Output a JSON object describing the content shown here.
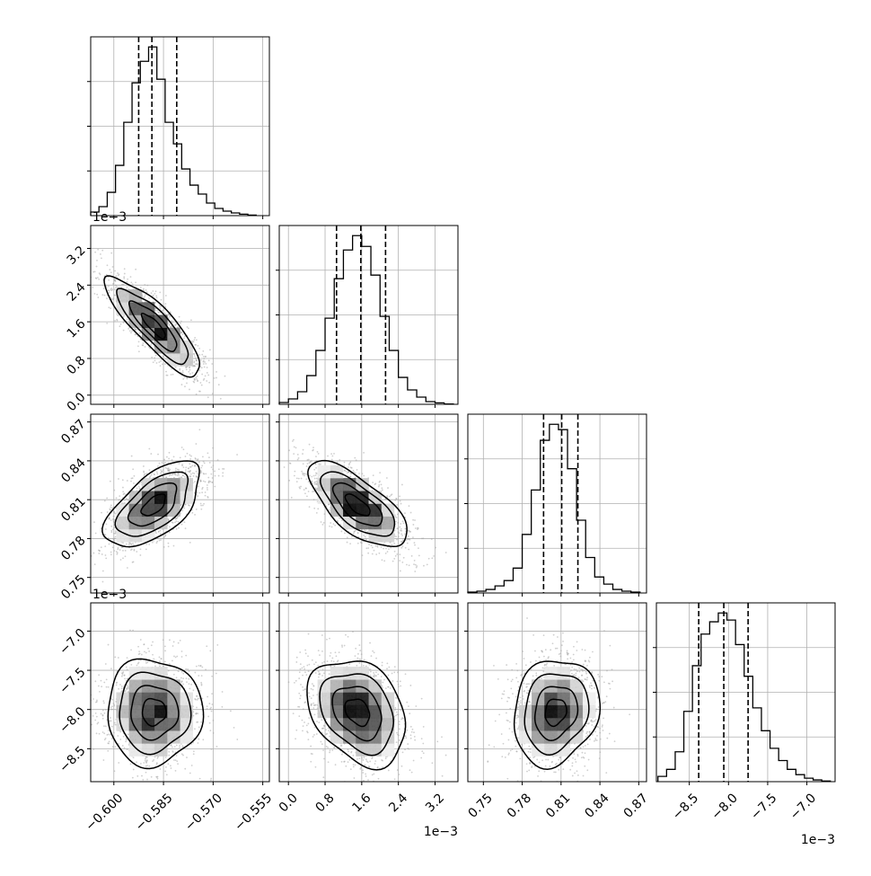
{
  "chart_data": {
    "type": "corner",
    "grid": true,
    "parameters": [
      {
        "index": 0,
        "range": [
          -0.607,
          -0.553
        ],
        "ticks": [
          -0.6,
          -0.585,
          -0.57,
          -0.555
        ],
        "tick_labels": [
          "−0.600",
          "−0.585",
          "−0.570",
          "−0.555"
        ],
        "offset_label": "",
        "quantiles": [
          -0.5925,
          -0.5885,
          -0.581
        ],
        "histogram": {
          "bin_edges": [
            -0.607,
            -0.6045,
            -0.602,
            -0.5995,
            -0.597,
            -0.5945,
            -0.592,
            -0.5895,
            -0.587,
            -0.5845,
            -0.582,
            -0.5795,
            -0.577,
            -0.5745,
            -0.572,
            -0.5695,
            -0.567,
            -0.5645,
            -0.562,
            -0.5595,
            -0.557
          ],
          "counts": [
            0.02,
            0.05,
            0.13,
            0.28,
            0.52,
            0.74,
            0.86,
            0.94,
            0.76,
            0.52,
            0.4,
            0.26,
            0.17,
            0.12,
            0.07,
            0.04,
            0.025,
            0.015,
            0.008,
            0.003
          ]
        }
      },
      {
        "index": 1,
        "range": [
          -0.0002,
          0.0037
        ],
        "ticks": [
          0.0,
          0.0008,
          0.0016,
          0.0024,
          0.0032
        ],
        "tick_labels": [
          "0.0",
          "0.8",
          "1.6",
          "2.4",
          "3.2"
        ],
        "offset_label": "1e−3",
        "quantiles": [
          0.00105,
          0.00158,
          0.00212
        ],
        "histogram": {
          "bin_edges": [
            -0.0002,
            0.0,
            0.0002,
            0.0004,
            0.0006,
            0.0008,
            0.001,
            0.0012,
            0.0014,
            0.0016,
            0.0018,
            0.002,
            0.0022,
            0.0024,
            0.0026,
            0.0028,
            0.003,
            0.0032,
            0.0034,
            0.0036
          ],
          "counts": [
            0.01,
            0.03,
            0.07,
            0.16,
            0.3,
            0.48,
            0.7,
            0.86,
            0.94,
            0.88,
            0.72,
            0.49,
            0.3,
            0.15,
            0.08,
            0.04,
            0.015,
            0.008,
            0.002
          ]
        }
      },
      {
        "index": 2,
        "range": [
          0.738,
          0.876
        ],
        "ticks": [
          0.75,
          0.78,
          0.81,
          0.84,
          0.87
        ],
        "tick_labels": [
          "0.75",
          "0.78",
          "0.81",
          "0.84",
          "0.87"
        ],
        "offset_label": "",
        "quantiles": [
          0.7965,
          0.8105,
          0.823
        ],
        "histogram": {
          "bin_edges": [
            0.738,
            0.745,
            0.752,
            0.759,
            0.766,
            0.773,
            0.78,
            0.787,
            0.794,
            0.801,
            0.808,
            0.815,
            0.822,
            0.829,
            0.836,
            0.843,
            0.85,
            0.857,
            0.864,
            0.871
          ],
          "counts": [
            0.005,
            0.01,
            0.02,
            0.04,
            0.07,
            0.14,
            0.33,
            0.58,
            0.86,
            0.95,
            0.92,
            0.7,
            0.41,
            0.2,
            0.09,
            0.05,
            0.02,
            0.01,
            0.005
          ]
        }
      },
      {
        "index": 3,
        "range": [
          -0.00892,
          -0.00664
        ],
        "ticks": [
          -0.0085,
          -0.008,
          -0.0075,
          -0.007
        ],
        "tick_labels": [
          "−8.5",
          "−8.0",
          "−7.5",
          "−7.0"
        ],
        "offset_label": "1e−3",
        "quantiles": [
          -0.00838,
          -0.00806,
          -0.00775
        ],
        "histogram": {
          "bin_edges": [
            -0.0089,
            -0.00879,
            -0.00868,
            -0.00857,
            -0.00846,
            -0.00835,
            -0.00824,
            -0.00813,
            -0.00802,
            -0.00791,
            -0.0078,
            -0.00769,
            -0.00758,
            -0.00747,
            -0.00736,
            -0.00725,
            -0.00714,
            -0.00703,
            -0.00692,
            -0.00681,
            -0.0067
          ],
          "counts": [
            0.03,
            0.07,
            0.17,
            0.4,
            0.66,
            0.84,
            0.91,
            0.96,
            0.92,
            0.78,
            0.6,
            0.42,
            0.29,
            0.19,
            0.12,
            0.07,
            0.04,
            0.02,
            0.01,
            0.004
          ]
        }
      }
    ],
    "correlations": {
      "1_0": -0.85,
      "2_0": 0.6,
      "2_1": -0.7,
      "3_0": 0.0,
      "3_1": -0.3,
      "3_2": 0.15
    },
    "contour_levels": [
      0.118,
      0.393,
      0.675,
      0.865
    ]
  }
}
